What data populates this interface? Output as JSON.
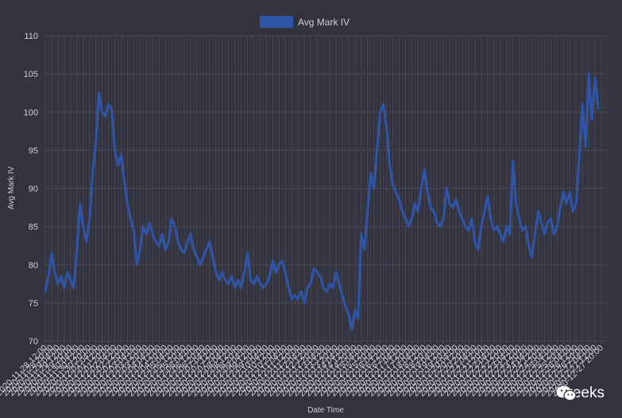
{
  "chart_data": {
    "type": "line",
    "title": "",
    "xlabel": "Date Time",
    "ylabel": "Avg Mark IV",
    "ylim": [
      70,
      110
    ],
    "yticks": [
      70,
      75,
      80,
      85,
      90,
      95,
      100,
      105,
      110
    ],
    "grid": true,
    "legend": "top-center",
    "x_start": "2020-11-28 12:00",
    "x_end": "2020-12-28 04:00",
    "x_tick_labels": [
      "2020-11-28 12:00",
      "2020-11-28 20:00",
      "2020-11-29 04:00",
      "2020-11-29 12:00",
      "2020-11-29 20:00",
      "2020-11-30 04:00",
      "2020-11-30 12:00",
      "2020-11-30 20:00",
      "2020-12-01 04:00",
      "2020-12-01 12:00",
      "2020-12-01 20:00",
      "2020-12-02 04:00",
      "2020-12-02 12:00",
      "2020-12-02 20:00",
      "2020-12-03 04:00",
      "2020-12-03 12:00",
      "2020-12-03 20:00",
      "2020-12-04 04:00",
      "2020-12-04 12:00",
      "2020-12-04 20:00",
      "2020-12-05 04:00",
      "2020-12-05 12:00",
      "2020-12-05 20:00",
      "2020-12-06 04:00",
      "2020-12-06 12:00",
      "2020-12-06 20:00",
      "2020-12-07 04:00",
      "2020-12-07 12:00",
      "2020-12-07 20:00",
      "2020-12-08 04:00",
      "2020-12-08 12:00",
      "2020-12-08 20:00",
      "2020-12-09 04:00",
      "2020-12-09 12:00",
      "2020-12-09 20:00",
      "2020-12-10 04:00",
      "2020-12-10 12:00",
      "2020-12-10 20:00",
      "2020-12-11 04:00",
      "2020-12-11 12:00",
      "2020-12-11 20:00",
      "2020-12-12 04:00",
      "2020-12-12 12:00",
      "2020-12-12 20:00",
      "2020-12-13 04:00",
      "2020-12-13 12:00",
      "2020-12-13 20:00",
      "2020-12-14 04:00",
      "2020-12-14 12:00",
      "2020-12-14 20:00",
      "2020-12-15 04:00",
      "2020-12-15 12:00",
      "2020-12-15 20:00",
      "2020-12-16 04:00",
      "2020-12-16 12:00",
      "2020-12-16 20:00",
      "2020-12-17 04:00",
      "2020-12-17 12:00",
      "2020-12-17 20:00",
      "2020-12-18 04:00",
      "2020-12-18 12:00",
      "2020-12-18 20:00",
      "2020-12-19 04:00",
      "2020-12-19 12:00",
      "2020-12-19 20:00",
      "2020-12-20 04:00",
      "2020-12-20 12:00",
      "2020-12-20 20:00",
      "2020-12-21 04:00",
      "2020-12-21 12:00",
      "2020-12-21 20:00",
      "2020-12-22 04:00",
      "2020-12-22 12:00",
      "2020-12-22 20:00",
      "2020-12-23 04:00",
      "2020-12-23 12:00",
      "2020-12-23 20:00",
      "2020-12-24 04:00",
      "2020-12-24 12:00",
      "2020-12-24 20:00",
      "2020-12-25 04:00",
      "2020-12-25 12:00",
      "2020-12-25 20:00",
      "2020-12-26 04:00",
      "2020-12-26 12:00",
      "2020-12-26 20:00",
      "2020-12-27 04:00",
      "2020-12-27 12:00",
      "2020-12-27 20:00"
    ],
    "series": [
      {
        "name": "Avg Mark IV",
        "color": "#2f55a8",
        "points": [
          [
            "2020-11-28 12:00",
            76.5
          ],
          [
            "2020-11-28 16:00",
            78.5
          ],
          [
            "2020-11-28 20:00",
            81.5
          ],
          [
            "2020-11-29 00:00",
            79
          ],
          [
            "2020-11-29 04:00",
            77.5
          ],
          [
            "2020-11-29 08:00",
            78.5
          ],
          [
            "2020-11-29 12:00",
            77
          ],
          [
            "2020-11-29 16:00",
            79
          ],
          [
            "2020-11-29 20:00",
            78
          ],
          [
            "2020-11-30 00:00",
            77
          ],
          [
            "2020-11-30 04:00",
            82
          ],
          [
            "2020-11-30 08:00",
            88
          ],
          [
            "2020-11-30 12:00",
            85
          ],
          [
            "2020-11-30 16:00",
            83
          ],
          [
            "2020-11-30 20:00",
            86
          ],
          [
            "2020-12-01 00:00",
            92
          ],
          [
            "2020-12-01 04:00",
            96
          ],
          [
            "2020-12-01 08:00",
            102.5
          ],
          [
            "2020-12-01 12:00",
            100
          ],
          [
            "2020-12-01 16:00",
            99.5
          ],
          [
            "2020-12-01 20:00",
            101
          ],
          [
            "2020-12-02 00:00",
            100.5
          ],
          [
            "2020-12-02 04:00",
            95
          ],
          [
            "2020-12-02 08:00",
            93
          ],
          [
            "2020-12-02 12:00",
            94.5
          ],
          [
            "2020-12-02 16:00",
            91
          ],
          [
            "2020-12-02 20:00",
            88
          ],
          [
            "2020-12-03 00:00",
            86
          ],
          [
            "2020-12-03 04:00",
            84.5
          ],
          [
            "2020-12-03 08:00",
            80
          ],
          [
            "2020-12-03 12:00",
            82
          ],
          [
            "2020-12-03 16:00",
            85
          ],
          [
            "2020-12-03 20:00",
            84
          ],
          [
            "2020-12-04 00:00",
            85.5
          ],
          [
            "2020-12-04 04:00",
            84
          ],
          [
            "2020-12-04 08:00",
            83
          ],
          [
            "2020-12-04 12:00",
            82.5
          ],
          [
            "2020-12-04 16:00",
            84
          ],
          [
            "2020-12-04 20:00",
            82
          ],
          [
            "2020-12-05 00:00",
            83
          ],
          [
            "2020-12-05 04:00",
            86
          ],
          [
            "2020-12-05 08:00",
            85
          ],
          [
            "2020-12-05 12:00",
            83
          ],
          [
            "2020-12-05 16:00",
            82
          ],
          [
            "2020-12-05 20:00",
            81.5
          ],
          [
            "2020-12-06 00:00",
            83
          ],
          [
            "2020-12-06 04:00",
            84
          ],
          [
            "2020-12-06 08:00",
            82
          ],
          [
            "2020-12-06 12:00",
            81
          ],
          [
            "2020-12-06 16:00",
            80
          ],
          [
            "2020-12-06 20:00",
            81
          ],
          [
            "2020-12-07 00:00",
            82
          ],
          [
            "2020-12-07 04:00",
            83
          ],
          [
            "2020-12-07 08:00",
            81
          ],
          [
            "2020-12-07 12:00",
            79
          ],
          [
            "2020-12-07 16:00",
            78
          ],
          [
            "2020-12-07 20:00",
            79
          ],
          [
            "2020-12-08 00:00",
            78
          ],
          [
            "2020-12-08 04:00",
            77.5
          ],
          [
            "2020-12-08 08:00",
            78.5
          ],
          [
            "2020-12-08 12:00",
            77
          ],
          [
            "2020-12-08 16:00",
            78
          ],
          [
            "2020-12-08 20:00",
            77
          ],
          [
            "2020-12-09 00:00",
            79
          ],
          [
            "2020-12-09 04:00",
            81.5
          ],
          [
            "2020-12-09 08:00",
            78
          ],
          [
            "2020-12-09 12:00",
            77.5
          ],
          [
            "2020-12-09 16:00",
            78.5
          ],
          [
            "2020-12-09 20:00",
            77.5
          ],
          [
            "2020-12-10 00:00",
            77
          ],
          [
            "2020-12-10 04:00",
            77.5
          ],
          [
            "2020-12-10 08:00",
            78.5
          ],
          [
            "2020-12-10 12:00",
            80.5
          ],
          [
            "2020-12-10 16:00",
            79
          ],
          [
            "2020-12-10 20:00",
            80
          ],
          [
            "2020-12-11 00:00",
            80.5
          ],
          [
            "2020-12-11 04:00",
            79
          ],
          [
            "2020-12-11 08:00",
            77
          ],
          [
            "2020-12-11 12:00",
            75.5
          ],
          [
            "2020-12-11 16:00",
            76
          ],
          [
            "2020-12-11 20:00",
            75.5
          ],
          [
            "2020-12-12 00:00",
            76.5
          ],
          [
            "2020-12-12 04:00",
            75
          ],
          [
            "2020-12-12 08:00",
            77
          ],
          [
            "2020-12-12 12:00",
            77.5
          ],
          [
            "2020-12-12 16:00",
            79.5
          ],
          [
            "2020-12-12 20:00",
            79
          ],
          [
            "2020-12-13 00:00",
            78.5
          ],
          [
            "2020-12-13 04:00",
            77
          ],
          [
            "2020-12-13 08:00",
            76.5
          ],
          [
            "2020-12-13 12:00",
            77.5
          ],
          [
            "2020-12-13 16:00",
            77
          ],
          [
            "2020-12-13 20:00",
            79
          ],
          [
            "2020-12-14 00:00",
            77.5
          ],
          [
            "2020-12-14 04:00",
            76
          ],
          [
            "2020-12-14 08:00",
            74.5
          ],
          [
            "2020-12-14 12:00",
            73.5
          ],
          [
            "2020-12-14 16:00",
            71.5
          ],
          [
            "2020-12-14 20:00",
            74
          ],
          [
            "2020-12-15 00:00",
            73
          ],
          [
            "2020-12-15 04:00",
            84
          ],
          [
            "2020-12-15 08:00",
            82
          ],
          [
            "2020-12-15 12:00",
            87
          ],
          [
            "2020-12-15 16:00",
            92
          ],
          [
            "2020-12-15 20:00",
            90
          ],
          [
            "2020-12-16 00:00",
            95
          ],
          [
            "2020-12-16 04:00",
            100
          ],
          [
            "2020-12-16 08:00",
            101
          ],
          [
            "2020-12-16 12:00",
            98
          ],
          [
            "2020-12-16 16:00",
            93
          ],
          [
            "2020-12-16 20:00",
            90.5
          ],
          [
            "2020-12-17 00:00",
            89.5
          ],
          [
            "2020-12-17 04:00",
            88.5
          ],
          [
            "2020-12-17 08:00",
            87
          ],
          [
            "2020-12-17 12:00",
            86
          ],
          [
            "2020-12-17 16:00",
            85
          ],
          [
            "2020-12-17 20:00",
            86
          ],
          [
            "2020-12-18 00:00",
            88
          ],
          [
            "2020-12-18 04:00",
            87
          ],
          [
            "2020-12-18 08:00",
            90
          ],
          [
            "2020-12-18 12:00",
            92.5
          ],
          [
            "2020-12-18 16:00",
            89.5
          ],
          [
            "2020-12-18 20:00",
            87.5
          ],
          [
            "2020-12-19 00:00",
            87
          ],
          [
            "2020-12-19 04:00",
            85.5
          ],
          [
            "2020-12-19 08:00",
            85
          ],
          [
            "2020-12-19 12:00",
            86
          ],
          [
            "2020-12-19 16:00",
            90
          ],
          [
            "2020-12-19 20:00",
            88
          ],
          [
            "2020-12-20 00:00",
            87.5
          ],
          [
            "2020-12-20 04:00",
            88.5
          ],
          [
            "2020-12-20 08:00",
            87
          ],
          [
            "2020-12-20 12:00",
            86
          ],
          [
            "2020-12-20 16:00",
            85
          ],
          [
            "2020-12-20 20:00",
            84.5
          ],
          [
            "2020-12-21 00:00",
            86
          ],
          [
            "2020-12-21 04:00",
            83
          ],
          [
            "2020-12-21 08:00",
            82
          ],
          [
            "2020-12-21 12:00",
            85
          ],
          [
            "2020-12-21 16:00",
            87
          ],
          [
            "2020-12-21 20:00",
            89
          ],
          [
            "2020-12-22 00:00",
            86
          ],
          [
            "2020-12-22 04:00",
            84.5
          ],
          [
            "2020-12-22 08:00",
            85
          ],
          [
            "2020-12-22 12:00",
            84
          ],
          [
            "2020-12-22 16:00",
            83
          ],
          [
            "2020-12-22 20:00",
            85
          ],
          [
            "2020-12-23 00:00",
            84
          ],
          [
            "2020-12-23 04:00",
            93.5
          ],
          [
            "2020-12-23 08:00",
            88
          ],
          [
            "2020-12-23 12:00",
            86
          ],
          [
            "2020-12-23 16:00",
            84.5
          ],
          [
            "2020-12-23 20:00",
            85
          ],
          [
            "2020-12-24 00:00",
            82.5
          ],
          [
            "2020-12-24 04:00",
            81
          ],
          [
            "2020-12-24 08:00",
            84
          ],
          [
            "2020-12-24 12:00",
            87
          ],
          [
            "2020-12-24 16:00",
            85.5
          ],
          [
            "2020-12-24 20:00",
            84
          ],
          [
            "2020-12-25 00:00",
            85.5
          ],
          [
            "2020-12-25 04:00",
            86
          ],
          [
            "2020-12-25 08:00",
            84
          ],
          [
            "2020-12-25 12:00",
            85
          ],
          [
            "2020-12-25 16:00",
            87.5
          ],
          [
            "2020-12-25 20:00",
            89.5
          ],
          [
            "2020-12-26 00:00",
            88
          ],
          [
            "2020-12-26 04:00",
            89.5
          ],
          [
            "2020-12-26 08:00",
            87
          ],
          [
            "2020-12-26 12:00",
            88
          ],
          [
            "2020-12-26 16:00",
            94
          ],
          [
            "2020-12-26 20:00",
            101
          ],
          [
            "2020-12-27 00:00",
            95.5
          ],
          [
            "2020-12-27 04:00",
            105
          ],
          [
            "2020-12-27 08:00",
            99
          ],
          [
            "2020-12-27 12:00",
            104.5
          ],
          [
            "2020-12-27 16:00",
            100.5
          ]
        ]
      }
    ]
  },
  "watermark": {
    "text": "Greeks",
    "icon": "wechat-icon"
  }
}
